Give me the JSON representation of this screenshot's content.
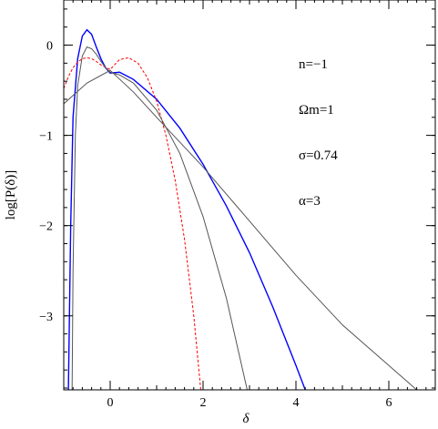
{
  "chart_data": {
    "type": "line",
    "xlabel": "δ",
    "ylabel": "log[P(δ)]",
    "xlim": [
      -1.0,
      7.0
    ],
    "ylim": [
      -3.82,
      0.5
    ],
    "xticks": [
      0,
      2,
      4,
      6
    ],
    "xtick_labels": [
      "0",
      "2",
      "4",
      "6"
    ],
    "yticks": [
      0,
      -1,
      -2,
      -3
    ],
    "ytick_labels": [
      "0",
      "−1",
      "−2",
      "−3"
    ],
    "grid": false,
    "annotations": [
      {
        "key": "n",
        "text": "n=−1"
      },
      {
        "key": "omega",
        "text": "Ωm=1"
      },
      {
        "key": "sigma",
        "text": "σ=0.74"
      },
      {
        "key": "alpha",
        "text": "α=3"
      }
    ],
    "series": [
      {
        "color": "#0000ff",
        "style": "solid",
        "x": [
          -0.9,
          -0.85,
          -0.8,
          -0.7,
          -0.6,
          -0.5,
          -0.4,
          -0.3,
          -0.2,
          -0.1,
          0.0,
          0.2,
          0.5,
          1.0,
          1.5,
          2.0,
          2.5,
          3.0,
          3.5,
          4.0,
          4.2
        ],
        "y": [
          -3.82,
          -2.0,
          -0.8,
          -0.15,
          0.1,
          0.17,
          0.12,
          -0.02,
          -0.15,
          -0.25,
          -0.31,
          -0.3,
          -0.38,
          -0.6,
          -0.92,
          -1.32,
          -1.78,
          -2.3,
          -2.9,
          -3.55,
          -3.82
        ]
      },
      {
        "color": "#ff0000",
        "style": "dashed",
        "x": [
          -1.0,
          -0.9,
          -0.8,
          -0.7,
          -0.6,
          -0.5,
          -0.4,
          -0.3,
          -0.2,
          0.0,
          0.2,
          0.4,
          0.6,
          0.8,
          1.0,
          1.2,
          1.4,
          1.6,
          1.8,
          1.95
        ],
        "y": [
          -0.48,
          -0.35,
          -0.25,
          -0.19,
          -0.15,
          -0.14,
          -0.15,
          -0.18,
          -0.22,
          -0.27,
          -0.16,
          -0.14,
          -0.2,
          -0.36,
          -0.62,
          -1.0,
          -1.5,
          -2.15,
          -3.0,
          -3.82
        ]
      },
      {
        "color": "#555555",
        "style": "solid",
        "x": [
          -0.82,
          -0.8,
          -0.75,
          -0.7,
          -0.6,
          -0.5,
          -0.4,
          -0.3,
          -0.2,
          -0.1,
          0.0,
          0.2,
          0.5,
          1.0,
          1.5,
          2.0,
          2.5,
          2.95
        ],
        "y": [
          -3.82,
          -2.5,
          -1.0,
          -0.45,
          -0.12,
          -0.02,
          -0.04,
          -0.1,
          -0.18,
          -0.25,
          -0.3,
          -0.33,
          -0.42,
          -0.72,
          -1.2,
          -1.9,
          -2.8,
          -3.82
        ]
      },
      {
        "color": "#555555",
        "style": "solid",
        "x": [
          -1.0,
          -0.5,
          0.0,
          0.5,
          1.0,
          2.0,
          3.0,
          4.0,
          5.0,
          6.0,
          6.6
        ],
        "y": [
          -0.65,
          -0.42,
          -0.28,
          -0.52,
          -0.8,
          -1.35,
          -1.95,
          -2.55,
          -3.1,
          -3.55,
          -3.82
        ]
      }
    ]
  }
}
